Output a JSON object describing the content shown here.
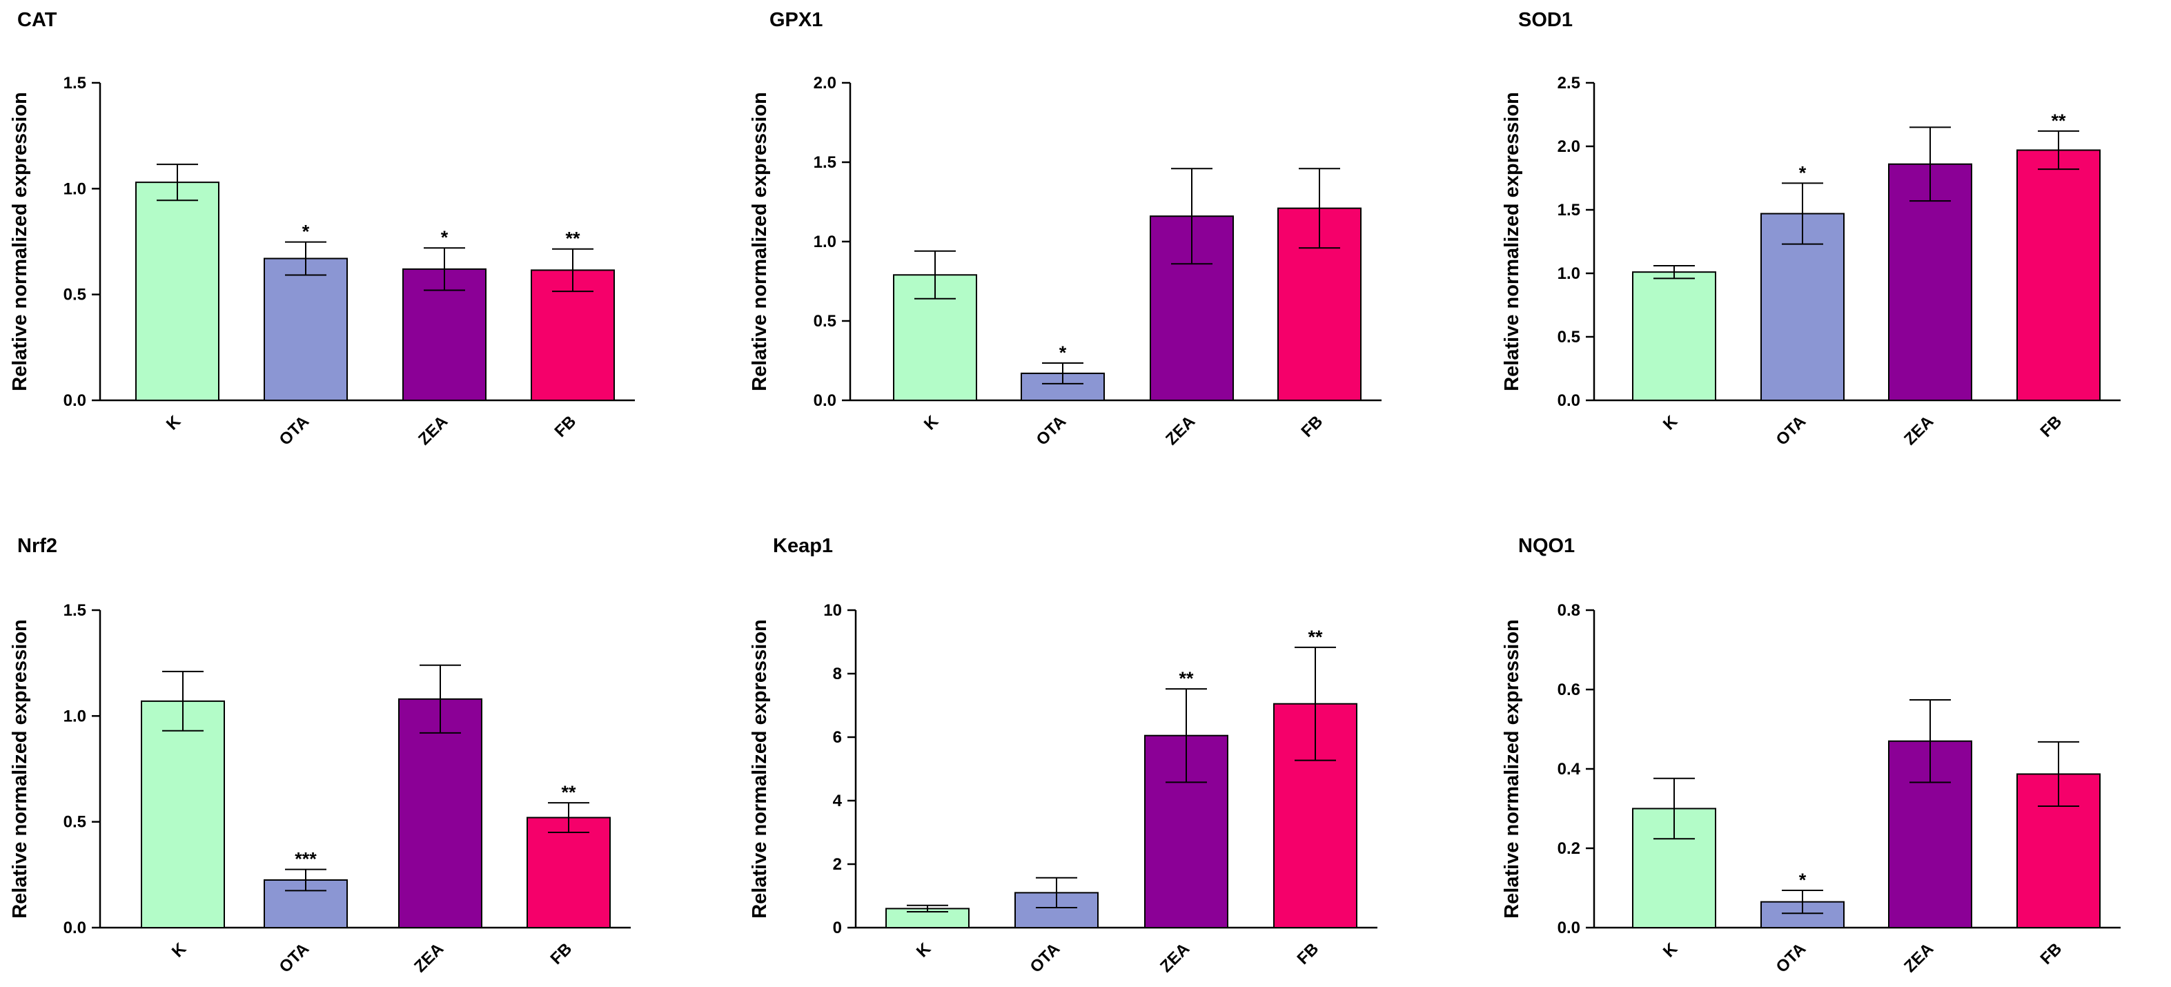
{
  "chart_data": [
    {
      "type": "bar",
      "title": "CAT",
      "ylabel": "Relative normalized expression",
      "categories": [
        "K",
        "OTA",
        "ZEA",
        "FB"
      ],
      "values": [
        1.03,
        0.67,
        0.62,
        0.615
      ],
      "errors": [
        0.085,
        0.078,
        0.1,
        0.1
      ],
      "significance": [
        "",
        "*",
        "*",
        "**"
      ],
      "yticks": [
        "0.0",
        "0.5",
        "1.0",
        "1.5"
      ],
      "ylim": [
        0,
        1.5
      ],
      "colors": [
        "#b3fcc8",
        "#8b96d3",
        "#8b0096",
        "#f5006a"
      ]
    },
    {
      "type": "bar",
      "title": "GPX1",
      "ylabel": "Relative normalized expression",
      "categories": [
        "K",
        "OTA",
        "ZEA",
        "FB"
      ],
      "values": [
        0.79,
        0.17,
        1.16,
        1.21
      ],
      "errors": [
        0.15,
        0.065,
        0.3,
        0.25
      ],
      "significance": [
        "",
        "*",
        "",
        ""
      ],
      "yticks": [
        "0.0",
        "0.5",
        "1.0",
        "1.5",
        "2.0"
      ],
      "ylim": [
        0,
        2.0
      ],
      "colors": [
        "#b3fcc8",
        "#8b96d3",
        "#8b0096",
        "#f5006a"
      ]
    },
    {
      "type": "bar",
      "title": "SOD1",
      "ylabel": "Relative normalized expression",
      "categories": [
        "K",
        "OTA",
        "ZEA",
        "FB"
      ],
      "values": [
        1.01,
        1.47,
        1.86,
        1.97
      ],
      "errors": [
        0.05,
        0.24,
        0.29,
        0.15
      ],
      "significance": [
        "",
        "*",
        "",
        "**"
      ],
      "yticks": [
        "0.0",
        "0.5",
        "1.0",
        "1.5",
        "2.0",
        "2.5"
      ],
      "ylim": [
        0,
        2.5
      ],
      "colors": [
        "#b3fcc8",
        "#8b96d3",
        "#8b0096",
        "#f5006a"
      ]
    },
    {
      "type": "bar",
      "title": "Nrf2",
      "ylabel": "Relative normalized expression",
      "categories": [
        "K",
        "OTA",
        "ZEA",
        "FB"
      ],
      "values": [
        1.07,
        0.225,
        1.08,
        0.52
      ],
      "errors": [
        0.14,
        0.05,
        0.16,
        0.07
      ],
      "significance": [
        "",
        "***",
        "",
        "**"
      ],
      "yticks": [
        "0.0",
        "0.5",
        "1.0",
        "1.5"
      ],
      "ylim": [
        0,
        1.5
      ],
      "colors": [
        "#b3fcc8",
        "#8b96d3",
        "#8b0096",
        "#f5006a"
      ]
    },
    {
      "type": "bar",
      "title": "Keap1",
      "ylabel": "Relative normalized expression",
      "categories": [
        "K",
        "OTA",
        "ZEA",
        "FB"
      ],
      "values": [
        0.6,
        1.1,
        6.05,
        7.05
      ],
      "errors": [
        0.1,
        0.47,
        1.47,
        1.78
      ],
      "significance": [
        "",
        "",
        "**",
        "**"
      ],
      "yticks": [
        "0",
        "2",
        "4",
        "6",
        "8",
        "10"
      ],
      "ylim": [
        0,
        10
      ],
      "colors": [
        "#b3fcc8",
        "#8b96d3",
        "#8b0096",
        "#f5006a"
      ]
    },
    {
      "type": "bar",
      "title": "NQO1",
      "ylabel": "Relative normalized expression",
      "categories": [
        "K",
        "OTA",
        "ZEA",
        "FB"
      ],
      "values": [
        0.3,
        0.065,
        0.47,
        0.387
      ],
      "errors": [
        0.076,
        0.029,
        0.104,
        0.081
      ],
      "significance": [
        "",
        "*",
        "",
        ""
      ],
      "yticks": [
        "0.0",
        "0.2",
        "0.4",
        "0.6",
        "0.8"
      ],
      "ylim": [
        0,
        0.8
      ],
      "colors": [
        "#b3fcc8",
        "#8b96d3",
        "#8b0096",
        "#f5006a"
      ]
    }
  ]
}
